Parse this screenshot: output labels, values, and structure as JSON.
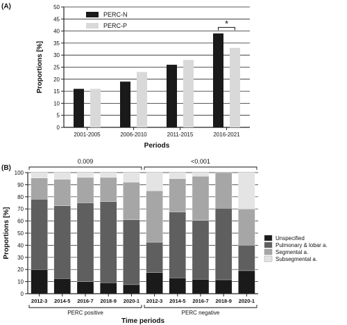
{
  "panels": {
    "a": {
      "label": "(A)"
    },
    "b": {
      "label": "(B)"
    }
  },
  "chart_data": [
    {
      "type": "bar",
      "panel": "(A)",
      "categories": [
        "2001-2005",
        "2006-2010",
        "2011-2015",
        "2016-2021"
      ],
      "series": [
        {
          "name": "PERC-N",
          "values": [
            16,
            19,
            26,
            39
          ],
          "color": "#1a1a1a"
        },
        {
          "name": "PERC-P",
          "values": [
            16,
            23,
            28,
            33
          ],
          "color": "#d9d9d9"
        }
      ],
      "xlabel": "Periods",
      "ylabel": "Proportions [%]",
      "ylim": [
        0,
        50
      ],
      "yticks": [
        0,
        5,
        10,
        15,
        20,
        25,
        30,
        35,
        40,
        45,
        50
      ],
      "grid": "horizontal",
      "legend": "top-left",
      "annotations": [
        {
          "text": "*",
          "between_series_at_category": "2016-2021"
        }
      ]
    },
    {
      "type": "bar",
      "stacked": true,
      "panel": "(B)",
      "groups": [
        {
          "name": "PERC positive",
          "categories": [
            "2012-3",
            "2014-5",
            "2016-7",
            "2018-9",
            "2020-1"
          ],
          "p_value": "0.009"
        },
        {
          "name": "PERC negative",
          "categories": [
            "2012-3",
            "2014-5",
            "2016-7",
            "2018-9",
            "2020-1"
          ],
          "p_value": "<0.001"
        }
      ],
      "series": [
        {
          "name": "Unspecified",
          "color": "#1a1a1a",
          "values": [
            20,
            12.5,
            10,
            9,
            7.5,
            17.5,
            13,
            12,
            11.5,
            19
          ]
        },
        {
          "name": "Pulmonary & lobar a.",
          "color": "#5f5f5f",
          "values": [
            58,
            60,
            65,
            67,
            53.5,
            25,
            54.5,
            48.5,
            59,
            21
          ]
        },
        {
          "name": "Segmental a.",
          "color": "#a6a6a6",
          "values": [
            17.5,
            22,
            21,
            20,
            31,
            42.5,
            27.5,
            36.5,
            29.5,
            30
          ]
        },
        {
          "name": "Subsegmental a.",
          "color": "#e4e4e4",
          "values": [
            4.5,
            5.5,
            4,
            4,
            8,
            15,
            5,
            3,
            0,
            30
          ]
        }
      ],
      "xlabel": "Time periods",
      "ylabel": "Proportions [%]",
      "ylim": [
        0,
        100
      ],
      "yticks": [
        0,
        10,
        20,
        30,
        40,
        50,
        60,
        70,
        80,
        90,
        100
      ],
      "grid": "horizontal",
      "legend": "right"
    }
  ]
}
